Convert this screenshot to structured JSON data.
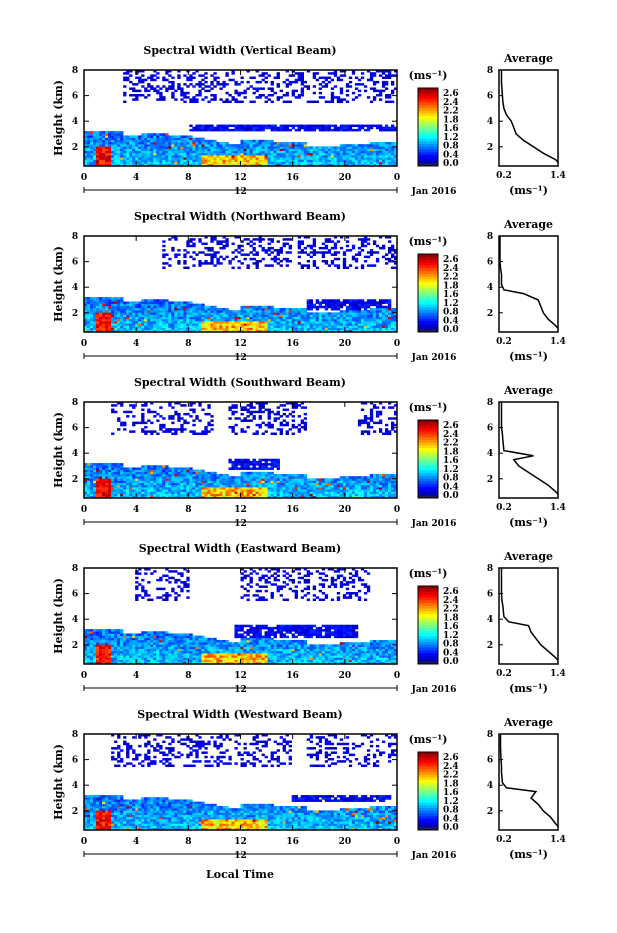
{
  "figure": {
    "x_axis_label": "Local Time",
    "date_label": "Jan 2016",
    "center_day": "12",
    "colorbar_unit": "(ms⁻¹)",
    "colorbar_ticks": [
      "2.6",
      "2.4",
      "2.2",
      "1.8",
      "1.6",
      "1.2",
      "0.8",
      "0.4",
      "0.0"
    ],
    "average_title": "Average",
    "average_xlabel": "(ms⁻¹)",
    "average_xticks": [
      "0.2",
      "1.4"
    ],
    "ylabel": "Height (km)",
    "xticks": [
      "0",
      "4",
      "8",
      "12",
      "16",
      "20",
      "0"
    ],
    "yticks": [
      "2",
      "4",
      "6",
      "8"
    ]
  },
  "chart_data": [
    {
      "type": "heatmap",
      "title": "Spectral Width (Vertical Beam)",
      "xlabel": "",
      "ylabel": "Height (km)",
      "xlim": [
        0,
        24
      ],
      "ylim": [
        0.5,
        8
      ],
      "colorbar_range": [
        0.0,
        2.8
      ],
      "upper_clutter": [
        [
          3,
          24
        ]
      ],
      "layer_box": [
        8,
        24,
        3.2,
        3.8
      ],
      "average_profile": {
        "x": [
          1.4,
          1.35,
          1.1,
          0.9,
          0.7,
          0.55,
          0.5,
          0.45,
          0.35,
          0.3,
          0.28,
          0.27,
          0.25,
          0.25
        ],
        "y": [
          0.8,
          1.0,
          1.5,
          2.0,
          2.5,
          3.0,
          3.5,
          4.0,
          4.5,
          5.0,
          5.5,
          6.0,
          7.0,
          8.0
        ],
        "xlim": [
          0.2,
          1.4
        ],
        "ylim": [
          0.5,
          8
        ]
      }
    },
    {
      "type": "heatmap",
      "title": "Spectral Width (Northward Beam)",
      "xlabel": "",
      "ylabel": "Height (km)",
      "xlim": [
        0,
        24
      ],
      "ylim": [
        0.5,
        8
      ],
      "colorbar_range": [
        0.0,
        2.8
      ],
      "upper_clutter": [
        [
          16.5,
          24
        ],
        [
          6,
          16
        ]
      ],
      "layer_box": [
        17,
        23.5,
        2.2,
        3.0
      ],
      "average_profile": {
        "x": [
          1.4,
          1.35,
          1.2,
          1.1,
          1.05,
          1.0,
          0.7,
          0.3,
          0.25,
          0.25,
          0.23,
          0.22,
          0.22,
          0.22
        ],
        "y": [
          0.8,
          1.0,
          1.5,
          2.0,
          2.5,
          3.0,
          3.5,
          3.8,
          4.2,
          5.0,
          5.5,
          6.0,
          7.0,
          8.0
        ],
        "xlim": [
          0.2,
          1.4
        ],
        "ylim": [
          0.5,
          8
        ]
      }
    },
    {
      "type": "heatmap",
      "title": "Spectral Width (Southward Beam)",
      "xlabel": "",
      "ylabel": "Height (km)",
      "xlim": [
        0,
        24
      ],
      "ylim": [
        0.5,
        8
      ],
      "colorbar_range": [
        0.0,
        2.8
      ],
      "upper_clutter": [
        [
          11,
          17
        ],
        [
          21,
          24
        ],
        [
          2,
          10
        ]
      ],
      "layer_box": [
        11,
        15,
        2.8,
        3.5
      ],
      "average_profile": {
        "x": [
          1.4,
          1.35,
          1.2,
          1.0,
          0.8,
          0.6,
          0.5,
          0.9,
          0.3,
          0.28,
          0.27,
          0.25,
          0.25,
          0.25
        ],
        "y": [
          0.8,
          1.0,
          1.5,
          2.0,
          2.5,
          3.0,
          3.5,
          3.8,
          4.2,
          5.0,
          5.5,
          6.0,
          7.0,
          8.0
        ],
        "xlim": [
          0.2,
          1.4
        ],
        "ylim": [
          0.5,
          8
        ]
      }
    },
    {
      "type": "heatmap",
      "title": "Spectral Width (Eastward Beam)",
      "xlabel": "",
      "ylabel": "Height (km)",
      "xlim": [
        0,
        24
      ],
      "ylim": [
        0.5,
        8
      ],
      "colorbar_range": [
        0.0,
        2.8
      ],
      "upper_clutter": [
        [
          12,
          22
        ],
        [
          4,
          8
        ]
      ],
      "layer_box": [
        11.5,
        21,
        2.6,
        3.6
      ],
      "average_profile": {
        "x": [
          1.4,
          1.35,
          1.2,
          1.05,
          0.95,
          0.85,
          0.8,
          0.4,
          0.3,
          0.28,
          0.26,
          0.25,
          0.25,
          0.25
        ],
        "y": [
          0.8,
          1.0,
          1.5,
          2.0,
          2.5,
          3.0,
          3.5,
          3.8,
          4.2,
          5.0,
          5.5,
          6.0,
          7.0,
          8.0
        ],
        "xlim": [
          0.2,
          1.4
        ],
        "ylim": [
          0.5,
          8
        ]
      }
    },
    {
      "type": "heatmap",
      "title": "Spectral Width (Westward Beam)",
      "xlabel": "",
      "ylabel": "Height (km)",
      "xlim": [
        0,
        24
      ],
      "ylim": [
        0.5,
        8
      ],
      "colorbar_range": [
        0.0,
        2.8
      ],
      "upper_clutter": [
        [
          17,
          24
        ],
        [
          2,
          16
        ]
      ],
      "layer_box": [
        16,
        23.5,
        2.8,
        3.3
      ],
      "average_profile": {
        "x": [
          1.4,
          1.35,
          1.25,
          1.1,
          1.0,
          0.85,
          0.95,
          0.35,
          0.27,
          0.25,
          0.25,
          0.24,
          0.23,
          0.23
        ],
        "y": [
          0.8,
          1.0,
          1.5,
          2.0,
          2.5,
          3.0,
          3.5,
          3.8,
          4.2,
          5.0,
          5.5,
          6.0,
          7.0,
          8.0
        ],
        "xlim": [
          0.2,
          1.4
        ],
        "ylim": [
          0.5,
          8
        ]
      }
    }
  ]
}
